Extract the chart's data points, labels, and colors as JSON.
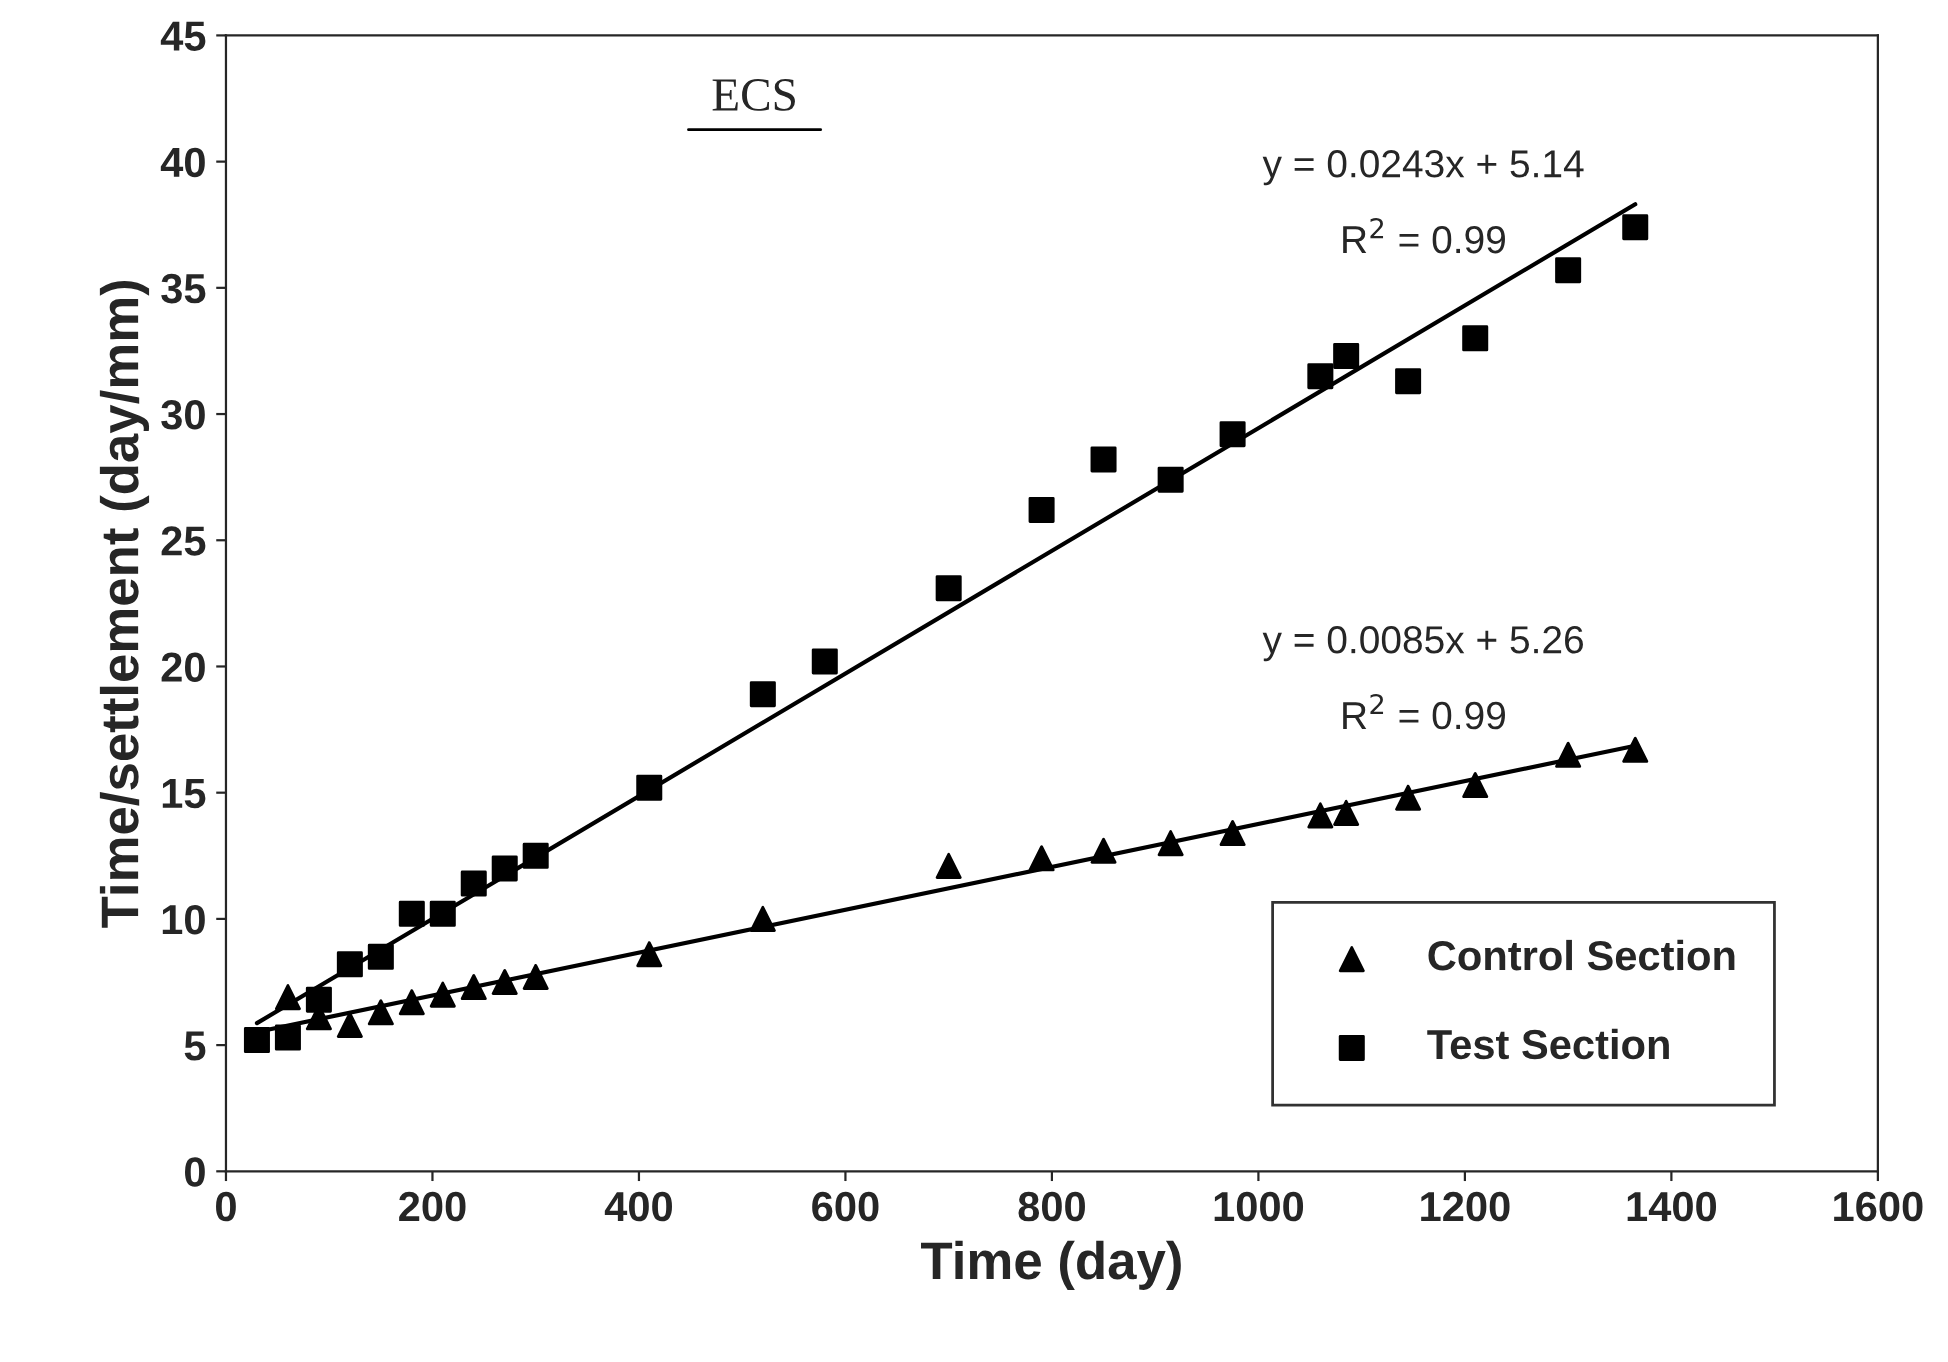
{
  "chart_data": {
    "type": "scatter",
    "xlabel": "Time (day)",
    "ylabel": "Time/settlement (day/mm)",
    "xlim": [
      0,
      1600
    ],
    "xticks": [
      0,
      200,
      400,
      600,
      800,
      1000,
      1200,
      1400,
      1600
    ],
    "ylim": [
      0,
      45
    ],
    "yticks": [
      0,
      5,
      10,
      15,
      20,
      25,
      30,
      35,
      40,
      45
    ],
    "grid": false,
    "legend": "bottom right",
    "series": [
      {
        "name": "Control Section",
        "color": "#000000",
        "marker": "triangle",
        "x": [
          60,
          90,
          120,
          150,
          180,
          210,
          240,
          270,
          300,
          410,
          520,
          700,
          790,
          850,
          915,
          975,
          1060,
          1085,
          1145,
          1210,
          1300,
          1365
        ],
        "values": [
          6.9,
          6.1,
          5.8,
          6.3,
          6.7,
          7.0,
          7.3,
          7.5,
          7.7,
          8.6,
          10.0,
          12.1,
          12.4,
          12.7,
          13.0,
          13.4,
          14.1,
          14.2,
          14.8,
          15.3,
          16.5,
          16.7
        ]
      },
      {
        "name": "Test Section",
        "color": "#000000",
        "marker": "square",
        "x": [
          30,
          60,
          90,
          120,
          150,
          180,
          210,
          240,
          270,
          300,
          410,
          520,
          580,
          700,
          790,
          850,
          915,
          975,
          1060,
          1085,
          1145,
          1210,
          1300,
          1365
        ],
        "values": [
          5.2,
          5.3,
          6.8,
          8.2,
          8.5,
          10.2,
          10.2,
          11.4,
          12.0,
          12.5,
          15.2,
          18.9,
          20.2,
          23.1,
          26.2,
          28.2,
          27.4,
          29.2,
          31.5,
          32.3,
          31.3,
          33.0,
          35.7,
          37.4
        ]
      },
      {
        "type": "line",
        "color": "#000000",
        "x": [
          30,
          1365
        ],
        "values": [
          5.87,
          38.31
        ]
      },
      {
        "type": "line",
        "color": "#000000",
        "x": [
          30,
          1365
        ],
        "values": [
          5.52,
          16.86
        ]
      }
    ],
    "annotations": [
      "ECS",
      "y = 0.0243x + 5.14",
      "R$^{2}$ = 0.99",
      "y = 0.0085x + 5.26",
      "R$^{2}$ = 0.99"
    ]
  }
}
